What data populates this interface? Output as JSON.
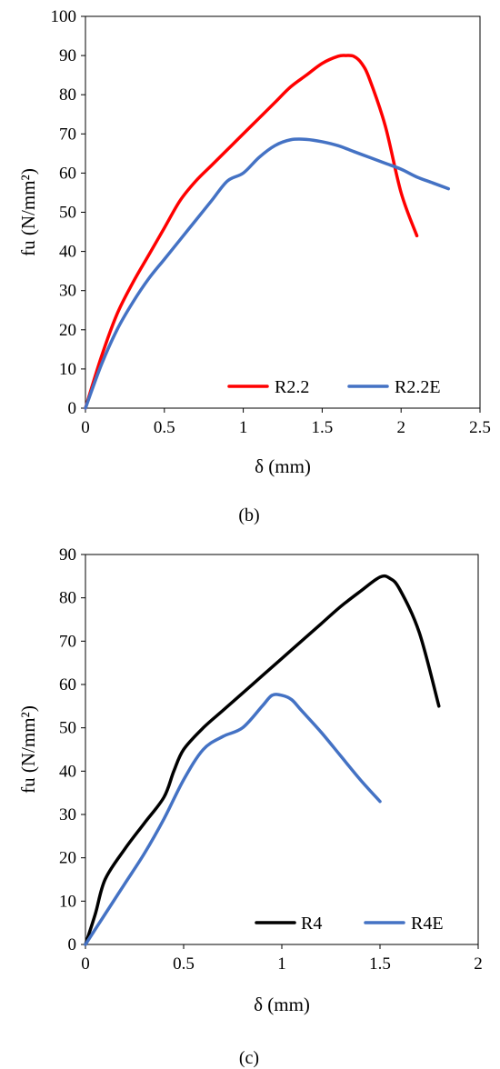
{
  "chart_data": [
    {
      "type": "line",
      "caption": "(b)",
      "xlabel": "δ (mm)",
      "ylabel": "fu (N/mm²)",
      "xlim": [
        0,
        2.5
      ],
      "ylim": [
        0,
        100
      ],
      "xticks": [
        "0",
        "0.5",
        "1",
        "1.5",
        "2",
        "2.5"
      ],
      "yticks": [
        "0",
        "10",
        "20",
        "30",
        "40",
        "50",
        "60",
        "70",
        "80",
        "90",
        "100"
      ],
      "grid": false,
      "legend": "bottom-right",
      "series": [
        {
          "name": "R2.2",
          "color": "#ff0000",
          "x": [
            0,
            0.1,
            0.2,
            0.3,
            0.4,
            0.5,
            0.6,
            0.7,
            0.8,
            0.9,
            1.0,
            1.1,
            1.2,
            1.3,
            1.4,
            1.5,
            1.6,
            1.65,
            1.7,
            1.75,
            1.8,
            1.9,
            2.0,
            2.1
          ],
          "y": [
            0,
            13,
            24,
            32,
            39,
            46,
            53,
            58,
            62,
            66,
            70,
            74,
            78,
            82,
            85,
            88,
            89.8,
            90,
            89.8,
            88,
            84,
            72,
            55,
            44
          ]
        },
        {
          "name": "R2.2E",
          "color": "#4472c4",
          "x": [
            0,
            0.1,
            0.2,
            0.3,
            0.4,
            0.5,
            0.6,
            0.7,
            0.8,
            0.9,
            1.0,
            1.1,
            1.2,
            1.3,
            1.4,
            1.5,
            1.6,
            1.7,
            1.8,
            1.9,
            2.0,
            2.1,
            2.2,
            2.3
          ],
          "y": [
            0,
            11,
            20,
            27,
            33,
            38,
            43,
            48,
            53,
            58,
            60,
            64,
            67,
            68.5,
            68.6,
            68,
            67,
            65.5,
            64,
            62.5,
            61,
            59,
            57.5,
            56
          ]
        }
      ]
    },
    {
      "type": "line",
      "caption": "(c)",
      "xlabel": "δ (mm)",
      "ylabel": "fu (N/mm²)",
      "xlim": [
        0,
        2
      ],
      "ylim": [
        0,
        90
      ],
      "xticks": [
        "0",
        "0.5",
        "1",
        "1.5",
        "2"
      ],
      "yticks": [
        "0",
        "10",
        "20",
        "30",
        "40",
        "50",
        "60",
        "70",
        "80",
        "90"
      ],
      "grid": false,
      "legend": "bottom-right",
      "series": [
        {
          "name": "R4",
          "color": "#000000",
          "x": [
            0,
            0.05,
            0.1,
            0.2,
            0.3,
            0.4,
            0.45,
            0.5,
            0.6,
            0.7,
            0.8,
            0.9,
            1.0,
            1.1,
            1.2,
            1.3,
            1.4,
            1.5,
            1.55,
            1.6,
            1.7,
            1.8
          ],
          "y": [
            0,
            7,
            15,
            22,
            28,
            34,
            40,
            45,
            50,
            54,
            58,
            62,
            66,
            70,
            74,
            78,
            81.5,
            84.8,
            84.5,
            82,
            72,
            55
          ]
        },
        {
          "name": "R4E",
          "color": "#4472c4",
          "x": [
            0,
            0.1,
            0.2,
            0.3,
            0.4,
            0.5,
            0.6,
            0.7,
            0.8,
            0.9,
            0.95,
            1.0,
            1.05,
            1.1,
            1.2,
            1.3,
            1.4,
            1.5
          ],
          "y": [
            0,
            7,
            14,
            21,
            29,
            38,
            45,
            48,
            50,
            55,
            57.5,
            57.5,
            56.5,
            54,
            49,
            43.5,
            38,
            33
          ]
        }
      ]
    }
  ]
}
